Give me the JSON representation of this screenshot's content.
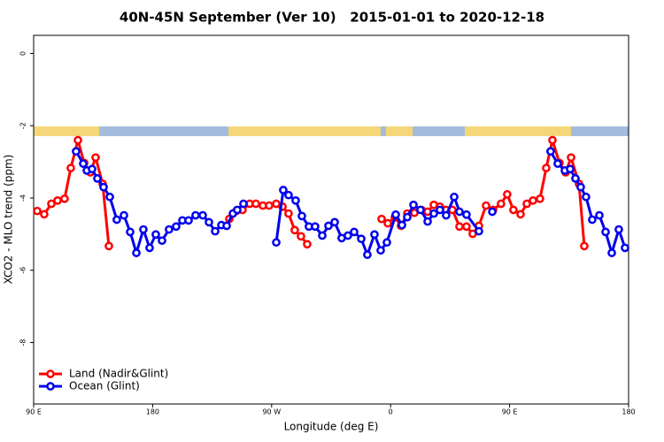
{
  "chart_data": {
    "type": "line",
    "title": "40N-45N September (Ver 10)   2015-01-01 to 2020-12-18",
    "x_label": "Longitude (deg E)",
    "y_label": "XCO2 - MLO trend (ppm)",
    "xlim": [
      90,
      540
    ],
    "xticks": [
      {
        "value": 90,
        "label": "90 E"
      },
      {
        "value": 180,
        "label": "180"
      },
      {
        "value": 270,
        "label": "90 W"
      },
      {
        "value": 360,
        "label": "0"
      },
      {
        "value": 450,
        "label": "90 E"
      },
      {
        "value": 540,
        "label": "180"
      }
    ],
    "ylim": [
      -9.7,
      0.5
    ],
    "yticks": [
      0,
      -2,
      -4,
      -6,
      -8
    ],
    "legend": "bottomleft",
    "series": [
      {
        "name": "Land (Nadir&Glint)",
        "color": "#ff0000",
        "x": [
          92.7,
          98.0,
          103.4,
          108.1,
          113.4,
          118.1,
          123.5,
          128.2,
          132.9,
          136.9,
          142.2,
          146.9,
          null,
          238.0,
          243.3,
          248.0,
          253.4,
          258.1,
          263.4,
          268.1,
          273.5,
          278.2,
          282.8,
          287.5,
          292.2,
          296.9,
          null,
          353.2,
          357.9,
          363.2,
          367.9,
          372.6,
          378.0,
          383.3,
          388.0,
          392.7,
          397.3,
          402.0,
          406.7,
          412.1,
          417.4,
          422.1,
          426.8,
          432.2,
          437.5,
          443.5,
          448.2,
          452.9,
          458.3,
          463.0,
          467.7,
          473.0,
          477.7,
          482.4,
          487.7,
          492.4,
          496.5,
          502.5,
          506.5
        ],
        "values": [
          -4.36,
          -4.45,
          -4.16,
          -4.07,
          -4.02,
          -3.17,
          -2.4,
          -3.03,
          -3.29,
          -2.88,
          -3.61,
          -5.33,
          null,
          -4.58,
          -4.36,
          -4.33,
          -4.16,
          -4.16,
          -4.21,
          -4.21,
          -4.16,
          -4.24,
          -4.43,
          -4.89,
          -5.06,
          -5.28,
          null,
          -4.58,
          -4.7,
          -4.53,
          -4.77,
          -4.43,
          -4.41,
          -4.33,
          -4.38,
          -4.19,
          -4.24,
          -4.33,
          -4.33,
          -4.79,
          -4.79,
          -4.99,
          -4.77,
          -4.21,
          -4.33,
          -4.16,
          -3.9,
          -4.33,
          -4.45,
          -4.16,
          -4.07,
          -4.02,
          -3.17,
          -2.4,
          -3.03,
          -3.29,
          -2.88,
          -3.61,
          -5.33
        ]
      },
      {
        "name": "Ocean (Glint)",
        "color": "#0000ee",
        "x": [
          122.1,
          127.5,
          130.2,
          134.2,
          138.2,
          142.9,
          147.6,
          152.9,
          158.3,
          163.0,
          167.7,
          173.0,
          177.7,
          182.4,
          187.1,
          192.4,
          197.8,
          202.5,
          207.2,
          212.5,
          217.9,
          222.6,
          227.3,
          232.0,
          236.0,
          240.7,
          244.0,
          248.7,
          null,
          273.5,
          278.8,
          282.8,
          288.2,
          292.9,
          298.2,
          302.9,
          308.3,
          313.0,
          317.7,
          323.0,
          327.7,
          332.4,
          337.8,
          342.4,
          347.8,
          352.5,
          357.2,
          363.9,
          368.6,
          372.6,
          377.3,
          382.6,
          388.0,
          392.7,
          397.3,
          402.0,
          408.1,
          412.1,
          417.4,
          426.8,
          null,
          436.9,
          null,
          481.0,
          486.4,
          491.8,
          495.8,
          499.8,
          503.8,
          507.8,
          512.5,
          517.9,
          522.6,
          527.3,
          532.6,
          537.3
        ],
        "values": [
          -2.71,
          -3.05,
          -3.24,
          -3.2,
          -3.46,
          -3.7,
          -3.97,
          -4.6,
          -4.48,
          -4.94,
          -5.52,
          -4.87,
          -5.38,
          -5.01,
          -5.18,
          -4.87,
          -4.79,
          -4.62,
          -4.62,
          -4.48,
          -4.48,
          -4.67,
          -4.92,
          -4.75,
          -4.77,
          -4.43,
          -4.33,
          -4.16,
          null,
          -5.23,
          -3.78,
          -3.92,
          -4.07,
          -4.5,
          -4.79,
          -4.79,
          -5.04,
          -4.77,
          -4.67,
          -5.11,
          -5.04,
          -4.94,
          -5.13,
          -5.57,
          -5.01,
          -5.45,
          -5.23,
          -4.46,
          -4.75,
          -4.53,
          -4.19,
          -4.33,
          -4.65,
          -4.43,
          -4.33,
          -4.48,
          -3.97,
          -4.38,
          -4.46,
          -4.92,
          null,
          -4.38,
          null,
          -2.71,
          -3.05,
          -3.24,
          -3.2,
          -3.46,
          -3.7,
          -3.97,
          -4.6,
          -4.48,
          -4.94,
          -5.52,
          -4.87,
          -5.38
        ]
      }
    ]
  }
}
